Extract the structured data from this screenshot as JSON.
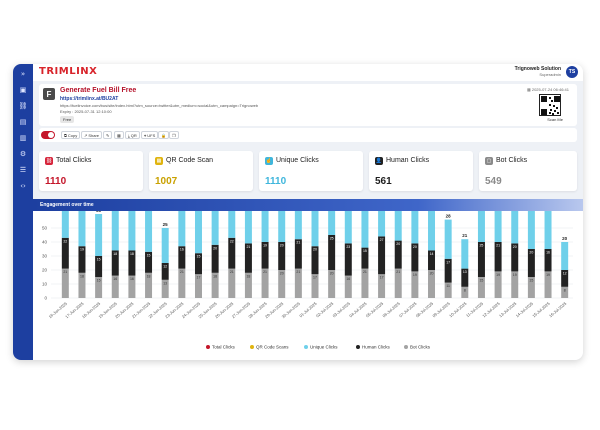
{
  "brand": {
    "logo": "TRIMLINX"
  },
  "user": {
    "name": "Trignoweb Solution",
    "role": "Superadmin",
    "initials": "TS"
  },
  "sidenav": {
    "items": [
      {
        "name": "collapse-icon",
        "glyph": "»"
      },
      {
        "name": "dashboard-icon",
        "glyph": "▣"
      },
      {
        "name": "link-icon",
        "glyph": "⛓"
      },
      {
        "name": "file-icon",
        "glyph": "▤"
      },
      {
        "name": "report-icon",
        "glyph": "▥"
      },
      {
        "name": "settings-icon",
        "glyph": "⚙"
      },
      {
        "name": "list-icon",
        "glyph": "☰"
      },
      {
        "name": "code-icon",
        "glyph": "‹›"
      }
    ]
  },
  "campaign": {
    "favicon": "F",
    "title": "Generate Fuel Bill Free",
    "short_link": "https://trimlinx.at/BU2AT",
    "long_url": "https://fuelinvoice.com/bus/site/index.html?utm_source=twitter&utm_medium=social&utm_campaign=Trignoweb",
    "expiry": "Expiry : 2025-07-31 12:10:00",
    "tag": "Free",
    "created": "2025-07-24 06:46:41",
    "scan_label": "Scan Me"
  },
  "actions": [
    {
      "name": "copy-button",
      "label": "Copy",
      "icon": "⧉"
    },
    {
      "name": "share-button",
      "label": "Share",
      "icon": "↗"
    },
    {
      "name": "edit-button",
      "label": "",
      "icon": "✎"
    },
    {
      "name": "qr-button",
      "label": "",
      "icon": "▦"
    },
    {
      "name": "download-qr-button",
      "label": "QR",
      "icon": "⤓"
    },
    {
      "name": "ufe-button",
      "label": "UFS",
      "icon": "⌖"
    },
    {
      "name": "lock-button",
      "label": "",
      "icon": "🔒"
    },
    {
      "name": "duplicate-button",
      "label": "",
      "icon": "❐"
    }
  ],
  "stats": [
    {
      "name": "total-clicks",
      "label": "Total Clicks",
      "value": "1110",
      "color": "#c4162a",
      "icon_bg": "#d6243a",
      "glyph": "⛓"
    },
    {
      "name": "qr-code-scan",
      "label": "QR Code Scan",
      "value": "1007",
      "color": "#c9a100",
      "icon_bg": "#e0b40f",
      "glyph": "▦"
    },
    {
      "name": "unique-clicks",
      "label": "Unique Clicks",
      "value": "1110",
      "color": "#3fb6dc",
      "icon_bg": "#3fb6dc",
      "glyph": "☝"
    },
    {
      "name": "human-clicks",
      "label": "Human Clicks",
      "value": "561",
      "color": "#1e1e1e",
      "icon_bg": "#222222",
      "glyph": "👤"
    },
    {
      "name": "bot-clicks",
      "label": "Bot Clicks",
      "value": "549",
      "color": "#8a8a8a",
      "icon_bg": "#8a8a8a",
      "glyph": "▢"
    }
  ],
  "chart_header": "Engagement over time",
  "chart_data": {
    "type": "bar",
    "title": "Engagement over time",
    "ylim": [
      0,
      50
    ],
    "yticks": [
      0,
      10,
      20,
      30,
      40,
      50
    ],
    "categories": [
      "16-Jun-2025",
      "17-Jun-2025",
      "18-Jun-2025",
      "19-Jun-2025",
      "20-Jun-2025",
      "21-Jun-2025",
      "22-Jun-2025",
      "23-Jun-2025",
      "24-Jun-2025",
      "25-Jun-2025",
      "26-Jun-2025",
      "27-Jun-2025",
      "28-Jun-2025",
      "29-Jun-2025",
      "30-Jun-2025",
      "01-Jul-2025",
      "02-Jul-2025",
      "03-Jul-2025",
      "04-Jul-2025",
      "05-Jul-2025",
      "06-Jul-2025",
      "07-Jul-2025",
      "08-Jul-2025",
      "09-Jul-2025",
      "10-Jul-2025",
      "11-Jul-2025",
      "12-Jul-2025",
      "13-Jul-2025",
      "14-Jul-2025",
      "15-Jul-2025",
      "16-Jul-2025"
    ],
    "series": [
      {
        "name": "Total Clicks",
        "color": "#c4162a",
        "values": [
          43,
          37,
          30,
          34,
          34,
          33,
          25,
          37,
          32,
          38,
          43,
          39,
          40,
          40,
          42,
          37,
          45,
          39,
          36,
          44,
          41,
          39,
          34,
          28,
          21,
          40,
          40,
          39,
          35,
          35,
          20
        ]
      },
      {
        "name": "QR Code Scans",
        "color": "#e0b40f",
        "values": [
          0,
          0,
          0,
          0,
          0,
          0,
          0,
          0,
          0,
          0,
          0,
          0,
          0,
          0,
          0,
          0,
          0,
          0,
          0,
          0,
          0,
          0,
          0,
          0,
          0,
          0,
          0,
          0,
          0,
          0,
          0
        ]
      },
      {
        "name": "Unique Clicks",
        "color": "#6fd0ea",
        "values": [
          43,
          37,
          30,
          34,
          34,
          33,
          25,
          37,
          32,
          38,
          43,
          39,
          40,
          40,
          42,
          37,
          45,
          39,
          36,
          44,
          41,
          39,
          34,
          28,
          21,
          40,
          40,
          39,
          35,
          35,
          20
        ]
      },
      {
        "name": "Human Clicks",
        "color": "#222222",
        "values": [
          22,
          19,
          15,
          18,
          18,
          15,
          12,
          16,
          15,
          20,
          22,
          21,
          19,
          20,
          21,
          20,
          25,
          23,
          15,
          27,
          20,
          20,
          14,
          17,
          13,
          25,
          21,
          20,
          20,
          16,
          12
        ]
      },
      {
        "name": "Bot Clicks",
        "color": "#a3a3a3",
        "values": [
          21,
          18,
          15,
          16,
          16,
          18,
          13,
          21,
          17,
          18,
          21,
          18,
          21,
          20,
          21,
          17,
          20,
          16,
          21,
          17,
          21,
          19,
          20,
          11,
          8,
          15,
          19,
          19,
          15,
          19,
          8
        ]
      }
    ]
  }
}
